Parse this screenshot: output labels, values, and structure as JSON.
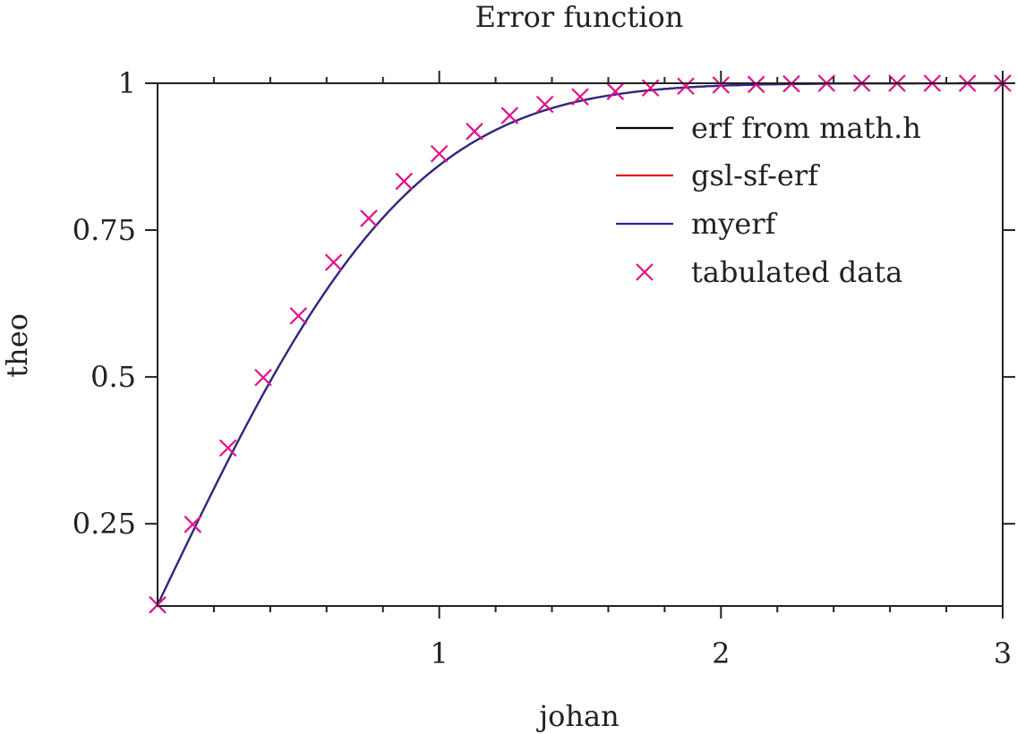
{
  "chart_data": {
    "type": "line",
    "title": "Error function",
    "xlabel": "johan",
    "ylabel": "theo",
    "xlim": [
      0.0,
      3.0
    ],
    "ylim": [
      0.11,
      1.0
    ],
    "x_ticks": [
      {
        "value": 1,
        "label": "1"
      },
      {
        "value": 2,
        "label": "2"
      },
      {
        "value": 3,
        "label": "3"
      }
    ],
    "y_ticks": [
      {
        "value": 0.25,
        "label": "0.25"
      },
      {
        "value": 0.5,
        "label": "0.5"
      },
      {
        "value": 0.75,
        "label": "0.75"
      },
      {
        "value": 1,
        "label": "1"
      }
    ],
    "legend_position": "top-right",
    "grid": false,
    "series": [
      {
        "name": "erf from math.h",
        "kind": "line",
        "color": "#000000",
        "function": "erf",
        "x_range": [
          0.0,
          3.0
        ]
      },
      {
        "name": "gsl-sf-erf",
        "kind": "line",
        "color": "#e41a1c",
        "function": "erf",
        "x_range": [
          0.0,
          3.0
        ]
      },
      {
        "name": "myerf",
        "kind": "line",
        "color": "#2a2a8a",
        "function": "erf",
        "x_range": [
          0.0,
          3.0
        ]
      },
      {
        "name": "tabulated data",
        "kind": "scatter",
        "marker": "x",
        "color": "#e0108a",
        "points": [
          [
            0.0,
            0.112
          ],
          [
            0.125,
            0.249
          ],
          [
            0.25,
            0.379
          ],
          [
            0.375,
            0.499
          ],
          [
            0.5,
            0.604
          ],
          [
            0.625,
            0.695
          ],
          [
            0.75,
            0.77
          ],
          [
            0.875,
            0.833
          ],
          [
            1.0,
            0.88
          ],
          [
            1.125,
            0.918
          ],
          [
            1.25,
            0.945
          ],
          [
            1.375,
            0.964
          ],
          [
            1.5,
            0.977
          ],
          [
            1.625,
            0.986
          ],
          [
            1.75,
            0.992
          ],
          [
            1.875,
            0.995
          ],
          [
            2.0,
            0.997
          ],
          [
            2.125,
            0.998
          ],
          [
            2.25,
            0.999
          ],
          [
            2.375,
            1.0
          ],
          [
            2.5,
            1.0
          ],
          [
            2.625,
            1.0
          ],
          [
            2.75,
            1.0
          ],
          [
            2.875,
            1.0
          ],
          [
            3.0,
            1.0
          ]
        ]
      }
    ]
  }
}
